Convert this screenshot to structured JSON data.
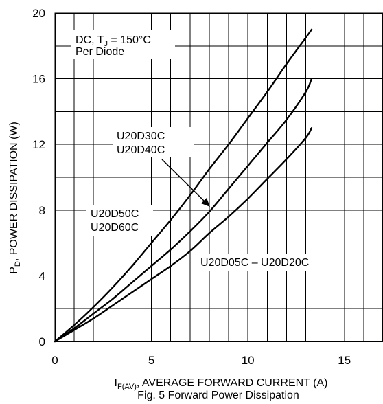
{
  "chart_data": {
    "type": "line",
    "title": "",
    "caption": "Fig. 5 Forward Power Dissipation",
    "ylabel": {
      "main": "P",
      "sub": "D",
      "rest": ", POWER DISSIPATION (W)"
    },
    "xlabel": {
      "main": "I",
      "sub": "F(AV)",
      "rest": ", AVERAGE FORWARD CURRENT (A)"
    },
    "xlim": [
      0,
      17
    ],
    "ylim": [
      0,
      20
    ],
    "xticks": [
      "0",
      "5",
      "10",
      "15"
    ],
    "yticks": [
      "0",
      "4",
      "8",
      "12",
      "16",
      "20"
    ],
    "grid": true,
    "condition_label": {
      "line1_prefix": "DC, T",
      "line1_sub": "J",
      "line1_suffix": " = 150°C",
      "line2": "Per Diode"
    },
    "series": [
      {
        "name": "U20D50C U20D60C",
        "label_lines": [
          "U20D50C",
          "U20D60C"
        ],
        "x": [
          0,
          1,
          2,
          3,
          4,
          5,
          6,
          7,
          8,
          9,
          10,
          11,
          12,
          13,
          13.3
        ],
        "y": [
          0,
          1.0,
          2.1,
          3.3,
          4.6,
          6.0,
          7.4,
          8.9,
          10.5,
          12.0,
          13.6,
          15.2,
          16.9,
          18.5,
          19.0
        ]
      },
      {
        "name": "U20D30C U20D40C",
        "label_lines": [
          "U20D30C",
          "U20D40C"
        ],
        "x": [
          0,
          1,
          2,
          3,
          4,
          5,
          6,
          7,
          8,
          9,
          10,
          11,
          12,
          13,
          13.3
        ],
        "y": [
          0,
          0.8,
          1.7,
          2.6,
          3.6,
          4.6,
          5.6,
          6.7,
          7.9,
          9.3,
          10.7,
          12.1,
          13.5,
          15.2,
          16.0
        ]
      },
      {
        "name": "U20D05C – U20D20C",
        "label_lines": [
          "U20D05C – U20D20C"
        ],
        "x": [
          0,
          1,
          2,
          3,
          4,
          5,
          6,
          7,
          8,
          9,
          10,
          11,
          12,
          13,
          13.3
        ],
        "y": [
          0,
          0.7,
          1.4,
          2.2,
          3.0,
          3.8,
          4.6,
          5.5,
          6.6,
          7.6,
          8.7,
          9.9,
          11.1,
          12.4,
          13.0
        ]
      }
    ]
  }
}
